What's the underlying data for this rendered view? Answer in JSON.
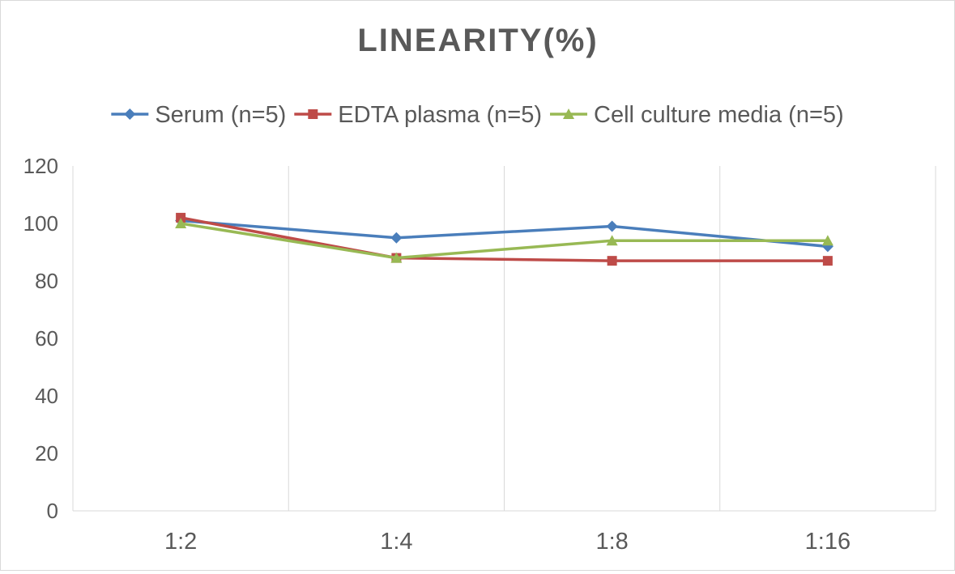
{
  "chart_data": {
    "type": "line",
    "title": "LINEARITY(%)",
    "xlabel": "",
    "ylabel": "",
    "categories": [
      "1:2",
      "1:4",
      "1:8",
      "1:16"
    ],
    "ylim": [
      0,
      120
    ],
    "yticks": [
      0,
      20,
      40,
      60,
      80,
      100,
      120
    ],
    "grid": "vertical",
    "legend_position": "top",
    "series": [
      {
        "name": "Serum (n=5)",
        "values": [
          101,
          95,
          99,
          92
        ],
        "color": "#4a7ebb",
        "marker": "diamond"
      },
      {
        "name": "EDTA plasma (n=5)",
        "values": [
          102,
          88,
          87,
          87
        ],
        "color": "#be4b48",
        "marker": "square"
      },
      {
        "name": "Cell culture media (n=5)",
        "values": [
          100,
          88,
          94,
          94
        ],
        "color": "#98b954",
        "marker": "triangle"
      }
    ]
  }
}
